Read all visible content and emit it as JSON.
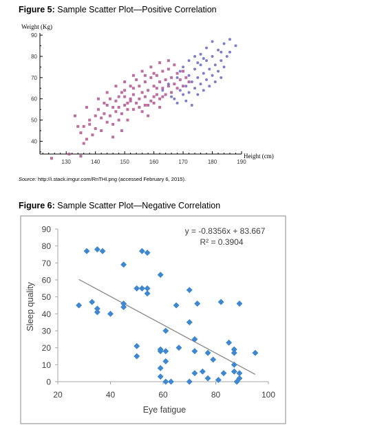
{
  "figure5": {
    "caption_label": "Figure 5:",
    "caption_text": " Sample Scatter Plot—Positive Correlation",
    "source_label": "Source:",
    "source_text": " http://i.stack.imgur.com/RnTHI.png (accessed February 6, 2015)."
  },
  "figure6": {
    "caption_label": "Figure 6:",
    "caption_text": " Sample Scatter Plot—Negative Correlation",
    "equation": "y = -0.8356x + 83.667",
    "r_squared": "R² = 0.3904"
  },
  "chart_data": [
    {
      "type": "scatter",
      "title": "",
      "ylabel": "Weight (Kg)",
      "xlabel": "Height (cm)",
      "xlim": [
        121,
        190
      ],
      "ylim": [
        34,
        91
      ],
      "xticks": [
        130,
        140,
        150,
        160,
        170,
        180,
        190
      ],
      "yticks": [
        40,
        50,
        60,
        70,
        80,
        90
      ],
      "grid": false,
      "legend": "none",
      "series_colors": [
        "#b0558e",
        "#6f6fc4"
      ],
      "note": "",
      "series": [
        {
          "marker": "square",
          "color": "#b0558e",
          "points": [
            [
              125,
              32
            ],
            [
              131,
              34
            ],
            [
              135,
              33
            ],
            [
              136,
              39
            ],
            [
              137,
              41
            ],
            [
              136,
              47
            ],
            [
              135,
              44
            ],
            [
              138,
              48
            ],
            [
              140,
              46
            ],
            [
              142,
              45
            ],
            [
              138,
              50
            ],
            [
              140,
              52
            ],
            [
              142,
              51
            ],
            [
              144,
              49
            ],
            [
              141,
              55
            ],
            [
              143,
              53
            ],
            [
              145,
              52
            ],
            [
              146,
              56
            ],
            [
              144,
              57
            ],
            [
              147,
              54
            ],
            [
              148,
              50
            ],
            [
              149,
              53
            ],
            [
              147,
              59
            ],
            [
              150,
              57
            ],
            [
              151,
              55
            ],
            [
              150,
              61
            ],
            [
              152,
              59
            ],
            [
              153,
              62
            ],
            [
              149,
              63
            ],
            [
              154,
              58
            ],
            [
              155,
              60
            ],
            [
              153,
              65
            ],
            [
              156,
              63
            ],
            [
              157,
              61
            ],
            [
              155,
              66
            ],
            [
              158,
              64
            ],
            [
              159,
              59
            ],
            [
              157,
              68
            ],
            [
              160,
              66
            ],
            [
              161,
              62
            ],
            [
              159,
              70
            ],
            [
              162,
              68
            ],
            [
              163,
              65
            ],
            [
              161,
              71
            ],
            [
              164,
              69
            ],
            [
              165,
              66
            ],
            [
              163,
              73
            ],
            [
              166,
              70
            ],
            [
              167,
              67
            ],
            [
              165,
              74
            ],
            [
              168,
              72
            ],
            [
              169,
              69
            ],
            [
              167,
              76
            ],
            [
              170,
              73
            ],
            [
              171,
              70
            ],
            [
              146,
              48
            ],
            [
              151,
              50
            ],
            [
              156,
              54
            ],
            [
              158,
              57
            ],
            [
              160,
              58
            ],
            [
              162,
              60
            ],
            [
              164,
              62
            ],
            [
              152,
              66
            ],
            [
              154,
              69
            ],
            [
              157,
              71
            ],
            [
              160,
              72
            ],
            [
              148,
              61
            ],
            [
              145,
              60
            ],
            [
              143,
              58
            ],
            [
              150,
              64
            ],
            [
              155,
              56
            ],
            [
              158,
              52
            ],
            [
              162,
              56
            ],
            [
              166,
              63
            ],
            [
              168,
              65
            ],
            [
              170,
              66
            ],
            [
              172,
              68
            ],
            [
              149,
              45
            ],
            [
              146,
              42
            ],
            [
              139,
              43
            ],
            [
              134,
              47
            ],
            [
              133,
              52
            ],
            [
              137,
              56
            ],
            [
              141,
              60
            ],
            [
              144,
              63
            ],
            [
              147,
              66
            ],
            [
              150,
              68
            ],
            [
              153,
              71
            ],
            [
              156,
              73
            ],
            [
              159,
              75
            ],
            [
              162,
              77
            ],
            [
              165,
              78
            ],
            [
              160,
              61
            ],
            [
              161,
              65
            ],
            [
              163,
              61
            ],
            [
              157,
              57
            ],
            [
              153,
              55
            ],
            [
              151,
              58
            ],
            [
              148,
              56
            ],
            [
              152,
              60
            ]
          ]
        },
        {
          "marker": "circle",
          "color": "#6f6fc4",
          "points": [
            [
              167,
              60
            ],
            [
              169,
              64
            ],
            [
              171,
              66
            ],
            [
              172,
              63
            ],
            [
              173,
              68
            ],
            [
              174,
              65
            ],
            [
              175,
              70
            ],
            [
              176,
              67
            ],
            [
              177,
              72
            ],
            [
              178,
              69
            ],
            [
              179,
              74
            ],
            [
              180,
              71
            ],
            [
              181,
              76
            ],
            [
              182,
              73
            ],
            [
              183,
              78
            ],
            [
              184,
              75
            ],
            [
              185,
              80
            ],
            [
              186,
              82
            ],
            [
              172,
              71
            ],
            [
              174,
              74
            ],
            [
              176,
              76
            ],
            [
              178,
              78
            ],
            [
              180,
              80
            ],
            [
              182,
              83
            ],
            [
              184,
              86
            ],
            [
              170,
              62
            ],
            [
              168,
              58
            ],
            [
              166,
              61
            ],
            [
              171,
              59
            ],
            [
              173,
              57
            ],
            [
              175,
              62
            ],
            [
              177,
              64
            ],
            [
              179,
              66
            ],
            [
              181,
              68
            ],
            [
              183,
              70
            ],
            [
              176,
              81
            ],
            [
              178,
              84
            ],
            [
              180,
              87
            ],
            [
              186,
              88
            ],
            [
              188,
              85
            ],
            [
              170,
              75
            ],
            [
              172,
              78
            ],
            [
              174,
              80
            ],
            [
              168,
              70
            ],
            [
              165,
              67
            ],
            [
              169,
              73
            ],
            [
              175,
              77
            ],
            [
              177,
              79
            ],
            [
              163,
              64
            ],
            [
              183,
              82
            ]
          ]
        }
      ]
    },
    {
      "type": "scatter",
      "title": "",
      "xlabel": "Eye fatigue",
      "ylabel": "Sleep quality",
      "xlim": [
        20,
        100
      ],
      "ylim": [
        0,
        90
      ],
      "xticks": [
        20,
        40,
        60,
        80,
        100
      ],
      "yticks": [
        0,
        10,
        20,
        30,
        40,
        50,
        60,
        70,
        80,
        90
      ],
      "grid": false,
      "legend": "none",
      "marker_color": "#3f88cf",
      "trendline": {
        "slope": -0.8356,
        "intercept": 83.667,
        "x_range": [
          28,
          95
        ],
        "color": "#888888"
      },
      "series": [
        {
          "marker": "diamond",
          "points": [
            [
              28,
              45
            ],
            [
              31,
              77
            ],
            [
              33,
              47
            ],
            [
              35,
              43
            ],
            [
              35,
              41
            ],
            [
              35,
              78
            ],
            [
              37,
              77
            ],
            [
              40,
              40
            ],
            [
              45,
              46
            ],
            [
              45,
              44
            ],
            [
              45,
              69
            ],
            [
              50,
              55
            ],
            [
              50,
              21
            ],
            [
              50,
              15
            ],
            [
              52,
              55
            ],
            [
              52,
              77
            ],
            [
              54,
              76
            ],
            [
              54,
              52
            ],
            [
              54,
              55
            ],
            [
              59,
              63
            ],
            [
              59,
              19
            ],
            [
              59,
              18
            ],
            [
              59,
              8
            ],
            [
              59,
              3
            ],
            [
              61,
              30
            ],
            [
              61,
              18
            ],
            [
              61,
              12
            ],
            [
              61,
              0
            ],
            [
              63,
              0
            ],
            [
              65,
              45
            ],
            [
              66,
              20
            ],
            [
              70,
              54
            ],
            [
              70,
              35
            ],
            [
              70,
              0
            ],
            [
              72,
              25
            ],
            [
              72,
              18
            ],
            [
              72,
              5
            ],
            [
              73,
              46
            ],
            [
              75,
              6
            ],
            [
              77,
              2
            ],
            [
              77,
              17
            ],
            [
              79,
              13
            ],
            [
              81,
              1
            ],
            [
              82,
              47
            ],
            [
              83,
              5
            ],
            [
              85,
              23
            ],
            [
              87,
              19
            ],
            [
              87,
              17
            ],
            [
              87,
              10
            ],
            [
              87,
              6
            ],
            [
              88,
              0
            ],
            [
              89,
              46
            ],
            [
              89,
              5
            ],
            [
              89,
              2
            ],
            [
              95,
              17
            ]
          ]
        }
      ]
    }
  ]
}
